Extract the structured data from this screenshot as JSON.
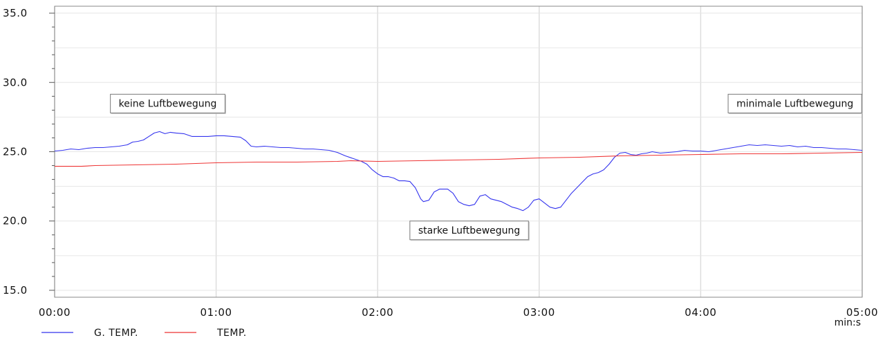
{
  "chart_data": {
    "type": "line",
    "title": "",
    "xlabel": "",
    "ylabel": "",
    "x_unit": "min:s",
    "xlim": [
      0,
      300
    ],
    "ylim": [
      14.5,
      35.5
    ],
    "x_ticks": [
      {
        "value": 0,
        "label": "00:00"
      },
      {
        "value": 60,
        "label": "01:00"
      },
      {
        "value": 120,
        "label": "02:00"
      },
      {
        "value": 180,
        "label": "03:00"
      },
      {
        "value": 240,
        "label": "04:00"
      },
      {
        "value": 300,
        "label": "05:00"
      }
    ],
    "y_ticks": [
      {
        "value": 15,
        "label": "15.0"
      },
      {
        "value": 20,
        "label": "20.0"
      },
      {
        "value": 25,
        "label": "25.0"
      },
      {
        "value": 30,
        "label": "30.0"
      },
      {
        "value": 35,
        "label": "35.0"
      }
    ],
    "grid": true,
    "legend_position": "bottom-left",
    "series": [
      {
        "name": "G. TEMP.",
        "color": "#3333ee",
        "points": [
          [
            0,
            25.05
          ],
          [
            3,
            25.1
          ],
          [
            6,
            25.2
          ],
          [
            9,
            25.15
          ],
          [
            12,
            25.25
          ],
          [
            15,
            25.3
          ],
          [
            18,
            25.3
          ],
          [
            21,
            25.35
          ],
          [
            24,
            25.4
          ],
          [
            27,
            25.5
          ],
          [
            29,
            25.7
          ],
          [
            31,
            25.75
          ],
          [
            33,
            25.85
          ],
          [
            35,
            26.1
          ],
          [
            37,
            26.35
          ],
          [
            39,
            26.45
          ],
          [
            41,
            26.3
          ],
          [
            43,
            26.4
          ],
          [
            45,
            26.35
          ],
          [
            48,
            26.3
          ],
          [
            51,
            26.1
          ],
          [
            54,
            26.1
          ],
          [
            57,
            26.1
          ],
          [
            60,
            26.15
          ],
          [
            63,
            26.15
          ],
          [
            66,
            26.1
          ],
          [
            69,
            26.05
          ],
          [
            71,
            25.8
          ],
          [
            73,
            25.4
          ],
          [
            75,
            25.35
          ],
          [
            78,
            25.4
          ],
          [
            81,
            25.35
          ],
          [
            84,
            25.3
          ],
          [
            87,
            25.3
          ],
          [
            90,
            25.25
          ],
          [
            93,
            25.2
          ],
          [
            96,
            25.2
          ],
          [
            99,
            25.15
          ],
          [
            102,
            25.1
          ],
          [
            105,
            24.95
          ],
          [
            108,
            24.7
          ],
          [
            111,
            24.5
          ],
          [
            114,
            24.3
          ],
          [
            116,
            24.1
          ],
          [
            118,
            23.7
          ],
          [
            120,
            23.4
          ],
          [
            122,
            23.2
          ],
          [
            124,
            23.2
          ],
          [
            126,
            23.1
          ],
          [
            128,
            22.9
          ],
          [
            130,
            22.9
          ],
          [
            132,
            22.85
          ],
          [
            134,
            22.4
          ],
          [
            136,
            21.6
          ],
          [
            137,
            21.4
          ],
          [
            139,
            21.5
          ],
          [
            141,
            22.1
          ],
          [
            143,
            22.3
          ],
          [
            146,
            22.3
          ],
          [
            148,
            22.0
          ],
          [
            150,
            21.4
          ],
          [
            152,
            21.2
          ],
          [
            154,
            21.1
          ],
          [
            156,
            21.2
          ],
          [
            158,
            21.8
          ],
          [
            160,
            21.9
          ],
          [
            162,
            21.6
          ],
          [
            164,
            21.5
          ],
          [
            166,
            21.4
          ],
          [
            168,
            21.2
          ],
          [
            170,
            21.0
          ],
          [
            172,
            20.9
          ],
          [
            174,
            20.75
          ],
          [
            176,
            21.0
          ],
          [
            178,
            21.5
          ],
          [
            180,
            21.6
          ],
          [
            182,
            21.3
          ],
          [
            184,
            21.0
          ],
          [
            186,
            20.9
          ],
          [
            188,
            21.0
          ],
          [
            190,
            21.5
          ],
          [
            192,
            22.0
          ],
          [
            194,
            22.4
          ],
          [
            196,
            22.8
          ],
          [
            198,
            23.2
          ],
          [
            200,
            23.4
          ],
          [
            202,
            23.5
          ],
          [
            204,
            23.7
          ],
          [
            206,
            24.1
          ],
          [
            208,
            24.6
          ],
          [
            210,
            24.9
          ],
          [
            212,
            24.95
          ],
          [
            214,
            24.8
          ],
          [
            216,
            24.75
          ],
          [
            218,
            24.85
          ],
          [
            220,
            24.9
          ],
          [
            222,
            25.0
          ],
          [
            225,
            24.9
          ],
          [
            228,
            24.95
          ],
          [
            231,
            25.0
          ],
          [
            234,
            25.1
          ],
          [
            237,
            25.05
          ],
          [
            240,
            25.05
          ],
          [
            243,
            25.0
          ],
          [
            246,
            25.1
          ],
          [
            249,
            25.2
          ],
          [
            252,
            25.3
          ],
          [
            255,
            25.4
          ],
          [
            258,
            25.5
          ],
          [
            261,
            25.45
          ],
          [
            264,
            25.5
          ],
          [
            267,
            25.45
          ],
          [
            270,
            25.4
          ],
          [
            273,
            25.45
          ],
          [
            276,
            25.35
          ],
          [
            279,
            25.4
          ],
          [
            282,
            25.3
          ],
          [
            285,
            25.3
          ],
          [
            288,
            25.25
          ],
          [
            291,
            25.2
          ],
          [
            294,
            25.2
          ],
          [
            297,
            25.15
          ],
          [
            300,
            25.1
          ]
        ]
      },
      {
        "name": "TEMP.",
        "color": "#ee3333",
        "points": [
          [
            0,
            23.95
          ],
          [
            10,
            23.95
          ],
          [
            15,
            24.0
          ],
          [
            30,
            24.05
          ],
          [
            45,
            24.1
          ],
          [
            60,
            24.2
          ],
          [
            75,
            24.25
          ],
          [
            90,
            24.25
          ],
          [
            105,
            24.3
          ],
          [
            110,
            24.35
          ],
          [
            120,
            24.3
          ],
          [
            135,
            24.35
          ],
          [
            150,
            24.4
          ],
          [
            165,
            24.45
          ],
          [
            180,
            24.55
          ],
          [
            195,
            24.6
          ],
          [
            210,
            24.7
          ],
          [
            225,
            24.75
          ],
          [
            240,
            24.8
          ],
          [
            255,
            24.85
          ],
          [
            270,
            24.85
          ],
          [
            285,
            24.9
          ],
          [
            300,
            24.95
          ]
        ]
      }
    ],
    "annotations": [
      {
        "text": "keine Luftbewegung",
        "x": 42,
        "y": 28.5
      },
      {
        "text": "minimale Luftbewegung",
        "x": 275,
        "y": 28.5
      },
      {
        "text": "starke Luftbewegung",
        "x": 154,
        "y": 19.35
      }
    ]
  }
}
